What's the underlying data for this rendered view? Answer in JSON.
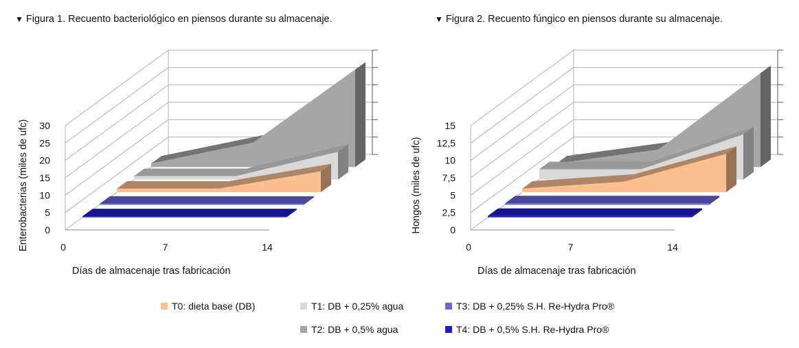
{
  "legend": [
    {
      "key": "T0",
      "label": "T0: dieta base  (DB)",
      "color": "#fac090"
    },
    {
      "key": "T1",
      "label": "T1: DB + 0,25% agua",
      "color": "#d9d9d9"
    },
    {
      "key": "T3",
      "label": "T3: DB + 0,25% S.H.  Re-Hydra Pro®",
      "color": "#6666dd"
    },
    {
      "key": "T2",
      "label": "T2: DB + 0,5% agua",
      "color": "#a6a6a6"
    },
    {
      "key": "T4",
      "label": "T4: DB + 0,5% S.H.  Re-Hydra Pro®",
      "color": "#1c1cc8"
    }
  ],
  "chart_data": [
    {
      "type": "area",
      "title": "Figura 1. Recuento bacteriológico en piensos durante su almacenaje.",
      "xlabel": "Días de almacenaje  tras fabricación",
      "ylabel": "Enterobacterias (miles de ufc)",
      "categories": [
        "0",
        "7",
        "14"
      ],
      "ylim": [
        0,
        30
      ],
      "yticks": [
        "0",
        "5",
        "10",
        "15",
        "20",
        "25",
        "30"
      ],
      "series": [
        {
          "name": "T4: DB + 0,5% S.H.  Re-Hydra Pro®",
          "values": [
            0.3,
            0.3,
            0.3
          ],
          "color": "#1c1cc8"
        },
        {
          "name": "T3: DB + 0,25% S.H.  Re-Hydra Pro®",
          "values": [
            0.3,
            0.3,
            0.3
          ],
          "color": "#6666dd"
        },
        {
          "name": "T0: dieta base  (DB)",
          "values": [
            1,
            1,
            6
          ],
          "color": "#fac090"
        },
        {
          "name": "T1: DB + 0,25% agua",
          "values": [
            1,
            1,
            8
          ],
          "color": "#d9d9d9"
        },
        {
          "name": "T2: DB + 0,5% agua",
          "values": [
            1,
            7,
            28
          ],
          "color": "#a6a6a6"
        }
      ]
    },
    {
      "type": "area",
      "title": "Figura 2. Recuento fúngico en piensos durante su almacenaje.",
      "xlabel": "Días de almacenaje  tras fabricación",
      "ylabel": "Hongos (miles de ufc)",
      "categories": [
        "0",
        "7",
        "14"
      ],
      "ylim": [
        0,
        15
      ],
      "yticks": [
        "0",
        "2,5",
        "5",
        "7,5",
        "10",
        "12,5",
        "15"
      ],
      "series": [
        {
          "name": "T4: DB + 0,5% S.H.  Re-Hydra Pro®",
          "values": [
            0.2,
            0.2,
            0.2
          ],
          "color": "#1c1cc8"
        },
        {
          "name": "T3: DB + 0,25% S.H.  Re-Hydra Pro®",
          "values": [
            0.2,
            0.2,
            0.2
          ],
          "color": "#6666dd"
        },
        {
          "name": "T0: dieta base  (DB)",
          "values": [
            0.5,
            1.5,
            5.5
          ],
          "color": "#fac090"
        },
        {
          "name": "T1: DB + 0,25% agua",
          "values": [
            1.5,
            1.5,
            6.5
          ],
          "color": "#d9d9d9"
        },
        {
          "name": "T2: DB + 0,5% agua",
          "values": [
            0.5,
            2.5,
            13.5
          ],
          "color": "#a6a6a6"
        }
      ]
    }
  ]
}
